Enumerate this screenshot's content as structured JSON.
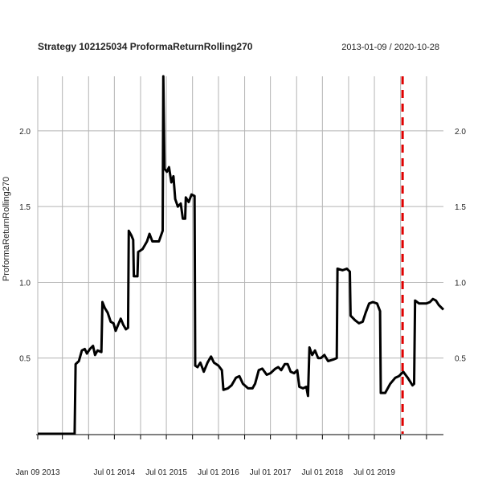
{
  "chart_data": {
    "type": "line",
    "title": "Strategy 102125034 ProformaReturnRolling270",
    "date_range": "2013-01-09 / 2020-10-28",
    "ylabel": "ProformaReturnRolling270",
    "xlim": [
      "2013-01-09",
      "2020-10-28"
    ],
    "ylim": [
      0.0,
      2.36
    ],
    "y_ticks": [
      0.5,
      1.0,
      1.5,
      2.0
    ],
    "y_tick_labels": [
      "0.5",
      "1.0",
      "1.5",
      "2.0"
    ],
    "x_tick_labels": [
      {
        "date": "2013-01-09",
        "label": "Jan 09 2013"
      },
      {
        "date": "2014-07-01",
        "label": "Jul 01 2014"
      },
      {
        "date": "2015-07-01",
        "label": "Jul 01 2015"
      },
      {
        "date": "2016-07-01",
        "label": "Jul 01 2016"
      },
      {
        "date": "2017-07-01",
        "label": "Jul 01 2017"
      },
      {
        "date": "2018-07-01",
        "label": "Jul 01 2018"
      },
      {
        "date": "2019-07-01",
        "label": "Jul 01 2019"
      }
    ],
    "x_gridlines": [
      "2013-01-09",
      "2013-07-01",
      "2014-01-01",
      "2014-07-01",
      "2015-01-01",
      "2015-07-01",
      "2016-01-01",
      "2016-07-01",
      "2017-01-01",
      "2017-07-01",
      "2018-01-01",
      "2018-07-01",
      "2019-01-01",
      "2019-07-01",
      "2020-01-01",
      "2020-07-01"
    ],
    "grid": true,
    "vline": {
      "date": "2020-01-15",
      "color": "#e00000",
      "style": "dashed"
    },
    "series": [
      {
        "color": "#000000",
        "points": [
          [
            "2013-01-09",
            0.0
          ],
          [
            "2013-09-25",
            0.0
          ],
          [
            "2013-10-02",
            0.46
          ],
          [
            "2013-10-25",
            0.48
          ],
          [
            "2013-11-15",
            0.55
          ],
          [
            "2013-12-05",
            0.56
          ],
          [
            "2013-12-20",
            0.53
          ],
          [
            "2014-01-10",
            0.56
          ],
          [
            "2014-02-01",
            0.58
          ],
          [
            "2014-02-15",
            0.52
          ],
          [
            "2014-03-05",
            0.55
          ],
          [
            "2014-04-01",
            0.54
          ],
          [
            "2014-04-08",
            0.87
          ],
          [
            "2014-04-25",
            0.83
          ],
          [
            "2014-05-15",
            0.8
          ],
          [
            "2014-06-05",
            0.74
          ],
          [
            "2014-06-25",
            0.73
          ],
          [
            "2014-07-10",
            0.68
          ],
          [
            "2014-07-28",
            0.72
          ],
          [
            "2014-08-15",
            0.76
          ],
          [
            "2014-09-01",
            0.72
          ],
          [
            "2014-09-20",
            0.69
          ],
          [
            "2014-10-05",
            0.7
          ],
          [
            "2014-10-10",
            1.34
          ],
          [
            "2014-10-28",
            1.31
          ],
          [
            "2014-11-10",
            1.28
          ],
          [
            "2014-11-15",
            1.04
          ],
          [
            "2014-12-10",
            1.04
          ],
          [
            "2014-12-15",
            1.2
          ],
          [
            "2015-01-15",
            1.22
          ],
          [
            "2015-02-15",
            1.27
          ],
          [
            "2015-03-05",
            1.32
          ],
          [
            "2015-03-25",
            1.27
          ],
          [
            "2015-05-10",
            1.27
          ],
          [
            "2015-06-05",
            1.34
          ],
          [
            "2015-06-10",
            2.36
          ],
          [
            "2015-06-18",
            1.75
          ],
          [
            "2015-07-05",
            1.73
          ],
          [
            "2015-07-20",
            1.76
          ],
          [
            "2015-08-05",
            1.66
          ],
          [
            "2015-08-20",
            1.7
          ],
          [
            "2015-09-01",
            1.55
          ],
          [
            "2015-09-20",
            1.5
          ],
          [
            "2015-10-10",
            1.52
          ],
          [
            "2015-10-25",
            1.42
          ],
          [
            "2015-11-10",
            1.42
          ],
          [
            "2015-11-15",
            1.56
          ],
          [
            "2015-12-05",
            1.53
          ],
          [
            "2015-12-25",
            1.58
          ],
          [
            "2016-01-15",
            1.57
          ],
          [
            "2016-01-20",
            0.45
          ],
          [
            "2016-02-05",
            0.44
          ],
          [
            "2016-02-25",
            0.47
          ],
          [
            "2016-03-20",
            0.41
          ],
          [
            "2016-04-15",
            0.47
          ],
          [
            "2016-05-10",
            0.51
          ],
          [
            "2016-05-30",
            0.47
          ],
          [
            "2016-07-01",
            0.45
          ],
          [
            "2016-07-25",
            0.42
          ],
          [
            "2016-08-05",
            0.29
          ],
          [
            "2016-09-05",
            0.3
          ],
          [
            "2016-10-01",
            0.32
          ],
          [
            "2016-11-01",
            0.37
          ],
          [
            "2016-11-25",
            0.38
          ],
          [
            "2016-12-20",
            0.33
          ],
          [
            "2017-01-25",
            0.3
          ],
          [
            "2017-02-25",
            0.3
          ],
          [
            "2017-03-15",
            0.33
          ],
          [
            "2017-04-10",
            0.42
          ],
          [
            "2017-05-05",
            0.43
          ],
          [
            "2017-06-05",
            0.39
          ],
          [
            "2017-07-01",
            0.4
          ],
          [
            "2017-08-05",
            0.43
          ],
          [
            "2017-08-25",
            0.44
          ],
          [
            "2017-09-15",
            0.42
          ],
          [
            "2017-10-10",
            0.46
          ],
          [
            "2017-10-30",
            0.46
          ],
          [
            "2017-11-20",
            0.41
          ],
          [
            "2017-12-15",
            0.4
          ],
          [
            "2018-01-05",
            0.42
          ],
          [
            "2018-01-20",
            0.31
          ],
          [
            "2018-02-15",
            0.3
          ],
          [
            "2018-03-10",
            0.31
          ],
          [
            "2018-03-22",
            0.25
          ],
          [
            "2018-04-01",
            0.57
          ],
          [
            "2018-04-20",
            0.52
          ],
          [
            "2018-05-10",
            0.55
          ],
          [
            "2018-06-01",
            0.5
          ],
          [
            "2018-06-20",
            0.5
          ],
          [
            "2018-07-15",
            0.52
          ],
          [
            "2018-08-10",
            0.48
          ],
          [
            "2018-09-15",
            0.49
          ],
          [
            "2018-10-10",
            0.5
          ],
          [
            "2018-10-15",
            1.09
          ],
          [
            "2018-11-20",
            1.08
          ],
          [
            "2018-12-20",
            1.09
          ],
          [
            "2019-01-10",
            1.07
          ],
          [
            "2019-01-15",
            0.78
          ],
          [
            "2019-02-15",
            0.75
          ],
          [
            "2019-03-15",
            0.73
          ],
          [
            "2019-04-10",
            0.74
          ],
          [
            "2019-05-01",
            0.8
          ],
          [
            "2019-05-25",
            0.86
          ],
          [
            "2019-06-20",
            0.87
          ],
          [
            "2019-07-20",
            0.86
          ],
          [
            "2019-08-10",
            0.81
          ],
          [
            "2019-08-15",
            0.27
          ],
          [
            "2019-09-15",
            0.27
          ],
          [
            "2019-10-20",
            0.33
          ],
          [
            "2019-11-25",
            0.37
          ],
          [
            "2019-12-20",
            0.38
          ],
          [
            "2020-01-20",
            0.41
          ],
          [
            "2020-02-20",
            0.37
          ],
          [
            "2020-03-25",
            0.32
          ],
          [
            "2020-04-05",
            0.33
          ],
          [
            "2020-04-12",
            0.88
          ],
          [
            "2020-05-10",
            0.86
          ],
          [
            "2020-06-10",
            0.86
          ],
          [
            "2020-07-01",
            0.86
          ],
          [
            "2020-07-25",
            0.87
          ],
          [
            "2020-08-15",
            0.89
          ],
          [
            "2020-09-05",
            0.88
          ],
          [
            "2020-09-25",
            0.85
          ],
          [
            "2020-10-28",
            0.82
          ]
        ]
      }
    ]
  }
}
